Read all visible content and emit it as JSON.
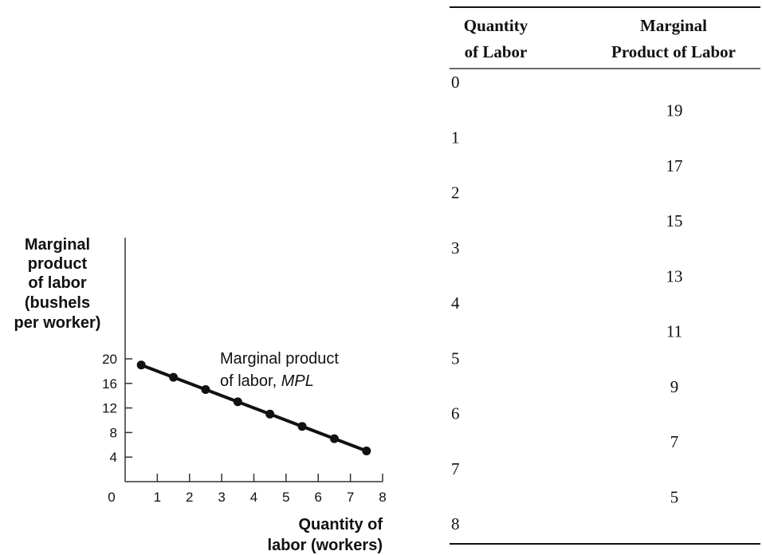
{
  "chart_data": [
    {
      "type": "line",
      "ylabel": [
        "Marginal",
        "product",
        "of labor",
        "(bushels",
        "per worker)"
      ],
      "xlabel": [
        "Quantity of",
        "labor (workers)"
      ],
      "x_ticks": [
        "0",
        "1",
        "2",
        "3",
        "4",
        "5",
        "6",
        "7",
        "8"
      ],
      "y_ticks": [
        "20",
        "16",
        "12",
        "8",
        "4"
      ],
      "xlim": [
        0,
        8
      ],
      "ylim": [
        0,
        20
      ],
      "grid": false,
      "series": [
        {
          "name": "Marginal product of labor, MPL",
          "x": [
            0.5,
            1.5,
            2.5,
            3.5,
            4.5,
            5.5,
            6.5,
            7.5
          ],
          "values": [
            19,
            17,
            15,
            13,
            11,
            9,
            7,
            5
          ]
        }
      ],
      "curve_label": {
        "text": "Marginal product",
        "text2": "of labor, ",
        "italic": "MPL"
      }
    },
    {
      "type": "table",
      "headers": [
        [
          "Quantity",
          "of Labor"
        ],
        [
          "Marginal",
          "Product of Labor"
        ]
      ],
      "quantity": [
        "0",
        "1",
        "2",
        "3",
        "4",
        "5",
        "6",
        "7",
        "8"
      ],
      "marginal_product": [
        "19",
        "17",
        "15",
        "13",
        "11",
        "9",
        "7",
        "5"
      ]
    }
  ]
}
